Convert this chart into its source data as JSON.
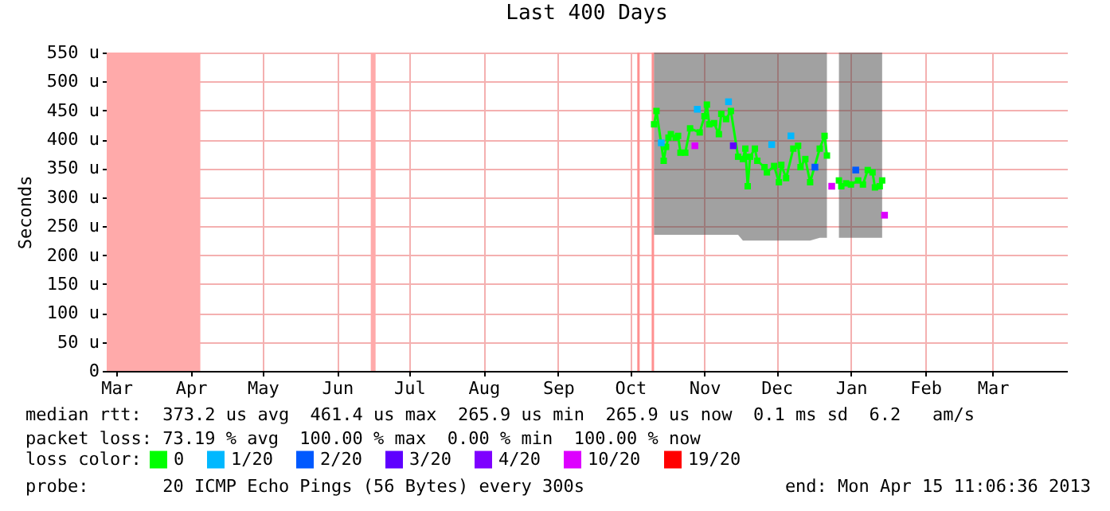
{
  "chart_data": {
    "type": "line",
    "title": "Last 400 Days",
    "ylabel": "Seconds",
    "legend_title": "loss color:",
    "legend": "bottom",
    "grid": true,
    "marker": "square",
    "xlim": [
      "2012-03-11",
      "2013-04-15"
    ],
    "xticks": [
      {
        "value": "2012-03-15",
        "label": "Mar"
      },
      {
        "value": "2012-04-15",
        "label": "Apr"
      },
      {
        "value": "2012-05-15",
        "label": "May"
      },
      {
        "value": "2012-06-15",
        "label": "Jun"
      },
      {
        "value": "2012-07-15",
        "label": "Jul"
      },
      {
        "value": "2012-08-15",
        "label": "Aug"
      },
      {
        "value": "2012-09-15",
        "label": "Sep"
      },
      {
        "value": "2012-10-15",
        "label": "Oct"
      },
      {
        "value": "2012-11-15",
        "label": "Nov"
      },
      {
        "value": "2012-12-15",
        "label": "Dec"
      },
      {
        "value": "2013-01-15",
        "label": "Jan"
      },
      {
        "value": "2013-02-15",
        "label": "Feb"
      },
      {
        "value": "2013-03-15",
        "label": "Mar"
      }
    ],
    "ylim": [
      0,
      550
    ],
    "yticks": [
      {
        "value": 0,
        "label": "0"
      },
      {
        "value": 50,
        "label": "50 u"
      },
      {
        "value": 100,
        "label": "100 u"
      },
      {
        "value": 150,
        "label": "150 u"
      },
      {
        "value": 200,
        "label": "200 u"
      },
      {
        "value": 250,
        "label": "250 u"
      },
      {
        "value": 300,
        "label": "300 u"
      },
      {
        "value": 350,
        "label": "350 u"
      },
      {
        "value": 400,
        "label": "400 u"
      },
      {
        "value": 450,
        "label": "450 u"
      },
      {
        "value": 500,
        "label": "500 u"
      },
      {
        "value": 550,
        "label": "550 u"
      }
    ],
    "series": [
      {
        "name": "0",
        "color": "#00ff00",
        "x": [
          "2012-10-25",
          "2012-10-26",
          "2012-10-29",
          "2012-10-30",
          "2012-10-31",
          "2012-11-01",
          "2012-11-03",
          "2012-11-04",
          "2012-11-05",
          "2012-11-07",
          "2012-11-09",
          "2012-11-13",
          "2012-11-15",
          "2012-11-16",
          "2012-11-17",
          "2012-11-19",
          "2012-11-21",
          "2012-11-22",
          "2012-11-24",
          "2012-11-26",
          "2012-11-29",
          "2012-12-01",
          "2012-12-02",
          "2012-12-03",
          "2012-12-04",
          "2012-12-06",
          "2012-12-07",
          "2012-12-10",
          "2012-12-11",
          "2012-12-14",
          "2012-12-16",
          "2012-12-17",
          "2012-12-19",
          "2012-12-22",
          "2012-12-24",
          "2012-12-25",
          "2012-12-27",
          "2012-12-29",
          "2013-01-02",
          "2013-01-04",
          "2013-01-05",
          "2013-01-08",
          "2013-01-10",
          "2013-01-11",
          "2013-01-13",
          "2013-01-15",
          "2013-01-18",
          "2013-01-20",
          "2013-01-22",
          "2013-01-24",
          "2013-01-25",
          "2013-01-27",
          "2013-01-28"
        ],
        "values": [
          426,
          449,
          363,
          387,
          403,
          409,
          403,
          406,
          377,
          377,
          419,
          412,
          440,
          460,
          426,
          428,
          409,
          444,
          435,
          449,
          370,
          366,
          384,
          319,
          370,
          384,
          363,
          352,
          343,
          354,
          326,
          356,
          333,
          384,
          389,
          352,
          366,
          326,
          384,
          406,
          372,
          null,
          329,
          319,
          324,
          322,
          329,
          322,
          347,
          343,
          317,
          319,
          329
        ],
        "lower": [
          235,
          235,
          235,
          235,
          235,
          235,
          235,
          235,
          235,
          235,
          235,
          235,
          235,
          235,
          235,
          235,
          235,
          235,
          235,
          235,
          235,
          225,
          225,
          225,
          225,
          225,
          225,
          225,
          225,
          225,
          225,
          225,
          225,
          225,
          225,
          225,
          225,
          225,
          230,
          230,
          230,
          null,
          230,
          230,
          230,
          230,
          230,
          230,
          230,
          230,
          230,
          230,
          230
        ],
        "upper": [
          550,
          550,
          550,
          550,
          550,
          550,
          550,
          550,
          550,
          550,
          550,
          550,
          550,
          550,
          550,
          550,
          550,
          550,
          550,
          550,
          550,
          550,
          550,
          550,
          550,
          550,
          550,
          550,
          550,
          550,
          550,
          550,
          550,
          550,
          550,
          550,
          550,
          550,
          550,
          550,
          550,
          null,
          550,
          550,
          550,
          550,
          550,
          550,
          550,
          550,
          550,
          550,
          550
        ]
      },
      {
        "name": "1/20",
        "color": "#00b8ff",
        "type": "scatter",
        "x": [
          "2012-10-28",
          "2012-11-12",
          "2012-11-25",
          "2012-12-13",
          "2012-12-21"
        ],
        "values": [
          394,
          452,
          465,
          391,
          406
        ]
      },
      {
        "name": "2/20",
        "color": "#0059ff",
        "type": "scatter",
        "x": [
          "2012-12-31",
          "2013-01-17"
        ],
        "values": [
          352,
          347
        ]
      },
      {
        "name": "3/20",
        "color": "#5e00ff",
        "type": "scatter",
        "x": [
          "2012-11-27"
        ],
        "values": [
          389
        ]
      },
      {
        "name": "4/20",
        "color": "#7e00ff",
        "type": "scatter"
      },
      {
        "name": "10/20",
        "color": "#dd00ff",
        "type": "scatter",
        "x": [
          "2012-11-11",
          "2013-01-07",
          "2013-01-29"
        ],
        "values": [
          389,
          319,
          269
        ]
      },
      {
        "name": "19/20",
        "color": "#ff0000",
        "type": "scatter"
      }
    ],
    "bands": [
      {
        "axis": "x",
        "from": "2012-03-11",
        "to": "2012-04-19",
        "color": "#ffaaaa"
      },
      {
        "axis": "x",
        "from": "2012-06-29",
        "to": "2012-07-01",
        "color": "#ffaaaa"
      },
      {
        "axis": "x",
        "from": "2012-10-18",
        "to": "2012-10-19",
        "color": "#ff9090"
      },
      {
        "axis": "x",
        "from": "2012-10-24",
        "to": "2012-10-25",
        "color": "#ff9090"
      }
    ],
    "annotations": [
      "median rtt:  373.2 us avg  461.4 us max  265.9 us min  265.9 us now  0.1 ms sd  6.2   am/s",
      "packet loss: 73.19 % avg  100.00 % max  0.00 % min  100.00 % now",
      "probe:       20 ICMP Echo Pings (56 Bytes) every 300s",
      "end: Mon Apr 15 11:06:36 2013"
    ]
  }
}
